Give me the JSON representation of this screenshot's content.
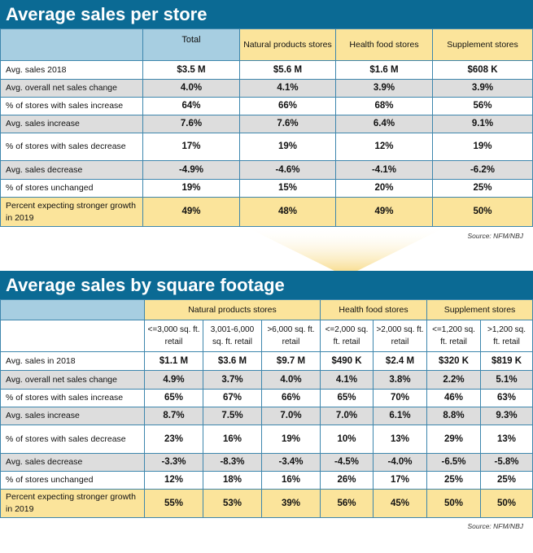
{
  "table1": {
    "title": "Average sales per store",
    "headers": [
      "",
      "Total",
      "Natural products stores",
      "Health food stores",
      "Supplement stores"
    ],
    "rows": [
      {
        "label": "Avg. sales 2018",
        "values": [
          "$3.5 M",
          "$5.6 M",
          "$1.6 M",
          "$608 K"
        ]
      },
      {
        "label": "Avg. overall net sales change",
        "values": [
          "4.0%",
          "4.1%",
          "3.9%",
          "3.9%"
        ]
      },
      {
        "label": "% of stores with sales increase",
        "values": [
          "64%",
          "66%",
          "68%",
          "56%"
        ]
      },
      {
        "label": "Avg. sales increase",
        "values": [
          "7.6%",
          "7.6%",
          "6.4%",
          "9.1%"
        ]
      },
      {
        "label": "% of stores with sales decrease",
        "values": [
          "17%",
          "19%",
          "12%",
          "19%"
        ]
      },
      {
        "label": "Avg. sales decrease",
        "values": [
          "-4.9%",
          "-4.6%",
          "-4.1%",
          "-6.2%"
        ]
      },
      {
        "label": "% of stores unchanged",
        "values": [
          "19%",
          "15%",
          "20%",
          "25%"
        ]
      },
      {
        "label": "Percent expecting stronger growth in 2019",
        "values": [
          "49%",
          "48%",
          "49%",
          "50%"
        ]
      }
    ],
    "source": "Source: NFM/NBJ"
  },
  "table2": {
    "title": "Average sales by square footage",
    "groups": [
      "Natural products stores",
      "Health food stores",
      "Supplement stores"
    ],
    "subheaders": [
      "<=3,000 sq. ft. retail",
      "3,001-6,000 sq. ft. retail",
      ">6,000 sq. ft. retail",
      "<=2,000 sq. ft. retail",
      ">2,000 sq. ft. retail",
      "<=1,200 sq. ft. retail",
      ">1,200 sq. ft. retail"
    ],
    "rows": [
      {
        "label": "Avg. sales in 2018",
        "values": [
          "$1.1 M",
          "$3.6 M",
          "$9.7 M",
          "$490 K",
          "$2.4 M",
          "$320 K",
          "$819 K"
        ]
      },
      {
        "label": "Avg. overall net sales change",
        "values": [
          "4.9%",
          "3.7%",
          "4.0%",
          "4.1%",
          "3.8%",
          "2.2%",
          "5.1%"
        ]
      },
      {
        "label": "% of stores with sales increase",
        "values": [
          "65%",
          "67%",
          "66%",
          "65%",
          "70%",
          "46%",
          "63%"
        ]
      },
      {
        "label": "Avg. sales increase",
        "values": [
          "8.7%",
          "7.5%",
          "7.0%",
          "7.0%",
          "6.1%",
          "8.8%",
          "9.3%"
        ]
      },
      {
        "label": "% of stores with sales decrease",
        "values": [
          "23%",
          "16%",
          "19%",
          "10%",
          "13%",
          "29%",
          "13%"
        ]
      },
      {
        "label": "Avg. sales decrease",
        "values": [
          "-3.3%",
          "-8.3%",
          "-3.4%",
          "-4.5%",
          "-4.0%",
          "-6.5%",
          "-5.8%"
        ]
      },
      {
        "label": "% of stores unchanged",
        "values": [
          "12%",
          "18%",
          "16%",
          "26%",
          "17%",
          "25%",
          "25%"
        ]
      },
      {
        "label": "Percent expecting stronger growth in 2019",
        "values": [
          "55%",
          "53%",
          "39%",
          "56%",
          "45%",
          "50%",
          "50%"
        ]
      }
    ],
    "source": "Source: NFM/NBJ"
  },
  "colors": {
    "banner": "#0b6a94",
    "header_blue": "#a7cee1",
    "highlight_yellow": "#fbe49b",
    "row_gray": "#dddddd"
  }
}
